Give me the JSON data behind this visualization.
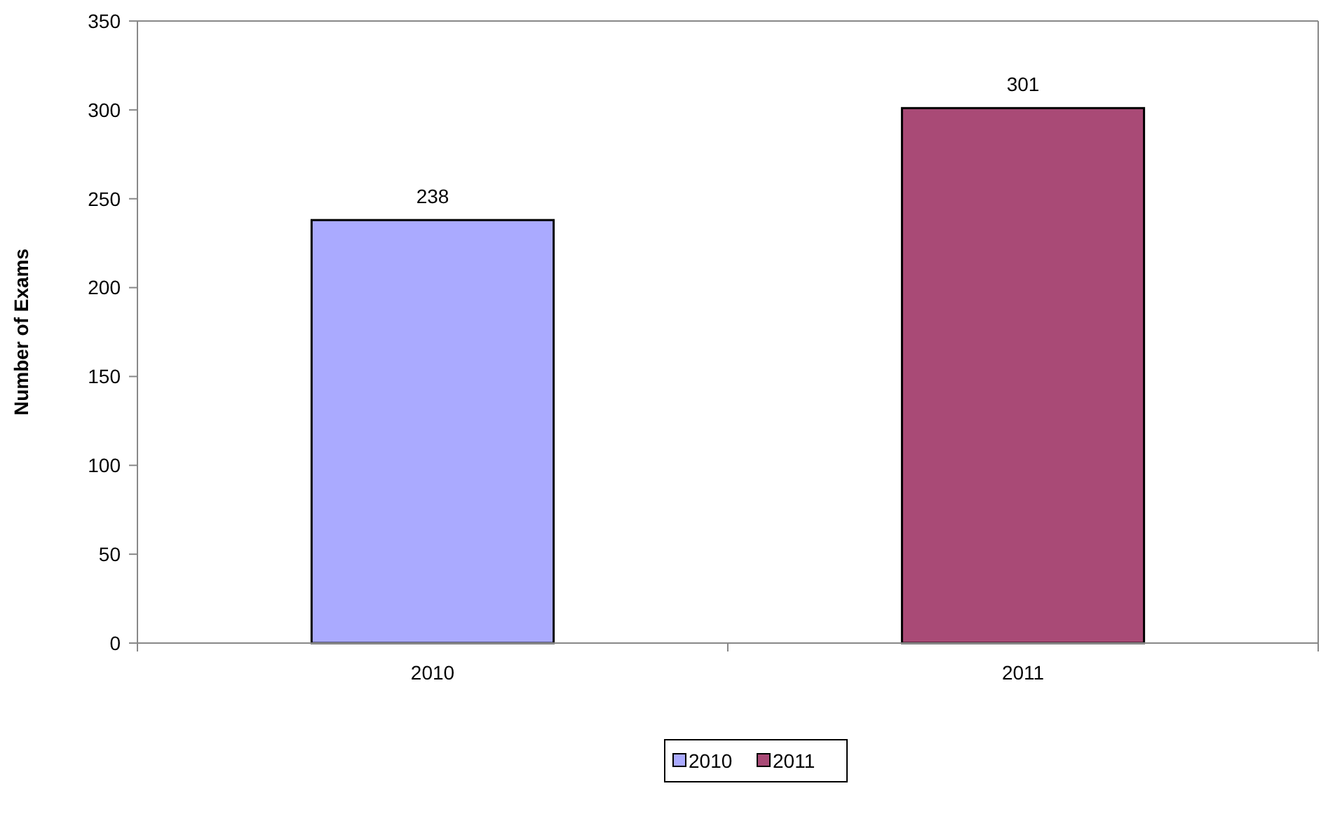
{
  "chart_data": {
    "type": "bar",
    "ylabel": "Number of Exams",
    "categories": [
      "2010",
      "2011"
    ],
    "series": [
      {
        "name": "2010",
        "color": "#aaaaff",
        "values": [
          238,
          null
        ]
      },
      {
        "name": "2011",
        "color": "#a94a76",
        "values": [
          null,
          301
        ]
      }
    ],
    "ylim": [
      0,
      350
    ],
    "yticks": [
      0,
      50,
      100,
      150,
      200,
      250,
      300,
      350
    ],
    "data_labels": true,
    "legend": "bottom"
  }
}
